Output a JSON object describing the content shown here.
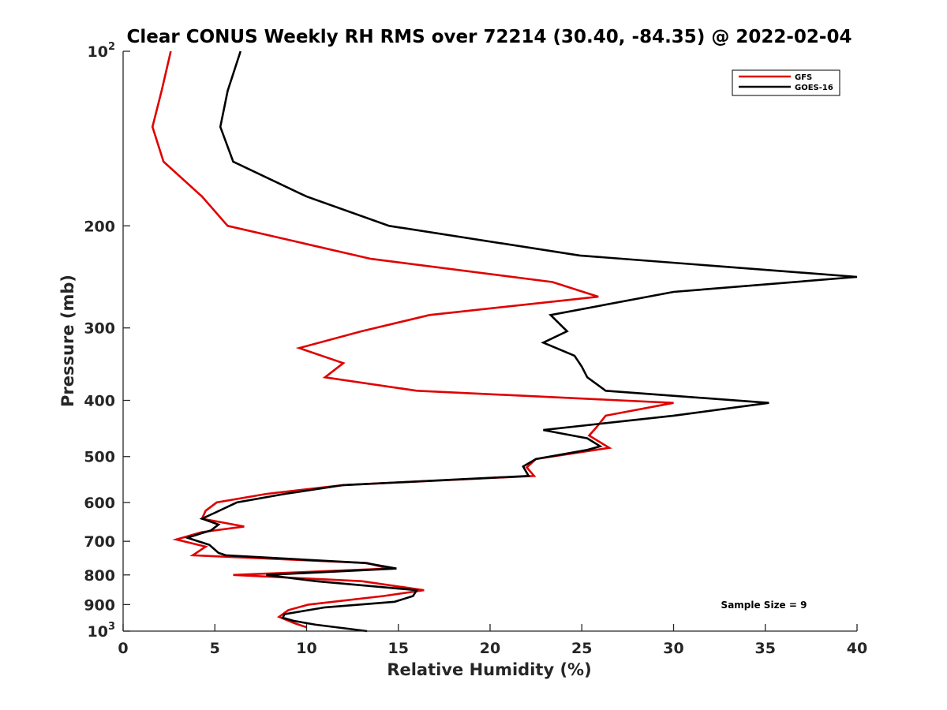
{
  "chart_data": {
    "type": "line",
    "title": "Clear CONUS Weekly RH RMS over 72214 (30.40, -84.35) @ 2022-02-04",
    "xlabel": "Relative Humidity (%)",
    "ylabel": "Pressure (mb)",
    "xlim": [
      0,
      40
    ],
    "ylim": [
      100,
      1000
    ],
    "yscale": "log",
    "y_reversed": true,
    "grid": false,
    "xticks": [
      0,
      5,
      10,
      15,
      20,
      25,
      30,
      35,
      40
    ],
    "xtick_labels": [
      "0",
      "5",
      "10",
      "15",
      "20",
      "25",
      "30",
      "35",
      "40"
    ],
    "yticks": [
      200,
      300,
      400,
      500,
      600,
      700,
      800,
      900
    ],
    "ytick_labels": [
      "200",
      "300",
      "400",
      "500",
      "600",
      "700",
      "800",
      "900"
    ],
    "ytick_top": {
      "base": "10",
      "exp": "2"
    },
    "ytick_bottom": {
      "base": "10",
      "exp": "3"
    },
    "legend_position": "top-right",
    "annotation": "Sample Size = 9",
    "series": [
      {
        "name": "GFS",
        "color": "#e00000",
        "points": [
          [
            2.6,
            100
          ],
          [
            2.1,
            117
          ],
          [
            1.6,
            135
          ],
          [
            2.2,
            155
          ],
          [
            4.3,
            178
          ],
          [
            5.7,
            200
          ],
          [
            13.5,
            228
          ],
          [
            23.4,
            250
          ],
          [
            25.9,
            265
          ],
          [
            16.7,
            285
          ],
          [
            13,
            304
          ],
          [
            9.6,
            325
          ],
          [
            12,
            345
          ],
          [
            11,
            365
          ],
          [
            16,
            385
          ],
          [
            30,
            404
          ],
          [
            26.3,
            425
          ],
          [
            25.8,
            445
          ],
          [
            25.4,
            460
          ],
          [
            26.5,
            483
          ],
          [
            22.5,
            505
          ],
          [
            22,
            522
          ],
          [
            22.4,
            540
          ],
          [
            12,
            560
          ],
          [
            7.8,
            580
          ],
          [
            5.1,
            600
          ],
          [
            4.5,
            620
          ],
          [
            4.3,
            640
          ],
          [
            6.6,
            660
          ],
          [
            4.3,
            675
          ],
          [
            2.9,
            695
          ],
          [
            4.5,
            715
          ],
          [
            3.8,
            740
          ],
          [
            13.3,
            763
          ],
          [
            14.5,
            780
          ],
          [
            6,
            800
          ],
          [
            13,
            820
          ],
          [
            16.4,
            850
          ],
          [
            14.2,
            870
          ],
          [
            10.1,
            900
          ],
          [
            9,
            920
          ],
          [
            8.5,
            945
          ],
          [
            9.3,
            968
          ],
          [
            10,
            985
          ]
        ]
      },
      {
        "name": "GOES-16",
        "color": "#000000",
        "points": [
          [
            6.4,
            100
          ],
          [
            5.7,
            117
          ],
          [
            5.3,
            135
          ],
          [
            6,
            155
          ],
          [
            10,
            178
          ],
          [
            14.5,
            200
          ],
          [
            24.9,
            225
          ],
          [
            40,
            245
          ],
          [
            30,
            260
          ],
          [
            23.3,
            285
          ],
          [
            24.2,
            304
          ],
          [
            22.9,
            318
          ],
          [
            24.6,
            335
          ],
          [
            25,
            350
          ],
          [
            25.3,
            365
          ],
          [
            26.3,
            385
          ],
          [
            35.2,
            404
          ],
          [
            30,
            425
          ],
          [
            22.9,
            450
          ],
          [
            25.3,
            465
          ],
          [
            26,
            480
          ],
          [
            25.3,
            487
          ],
          [
            22.5,
            505
          ],
          [
            21.8,
            520
          ],
          [
            22.1,
            540
          ],
          [
            12,
            560
          ],
          [
            8.8,
            580
          ],
          [
            6.2,
            600
          ],
          [
            5,
            625
          ],
          [
            4.3,
            640
          ],
          [
            5.2,
            655
          ],
          [
            4.8,
            670
          ],
          [
            3.5,
            690
          ],
          [
            4.7,
            710
          ],
          [
            5.2,
            733
          ],
          [
            5.6,
            740
          ],
          [
            13.2,
            763
          ],
          [
            14.9,
            780
          ],
          [
            7.8,
            800
          ],
          [
            10.5,
            820
          ],
          [
            16,
            850
          ],
          [
            15.8,
            870
          ],
          [
            14.8,
            890
          ],
          [
            11,
            910
          ],
          [
            8.8,
            935
          ],
          [
            8.7,
            948
          ],
          [
            9.3,
            960
          ],
          [
            10.5,
            975
          ],
          [
            13.3,
            1000
          ]
        ]
      }
    ]
  }
}
